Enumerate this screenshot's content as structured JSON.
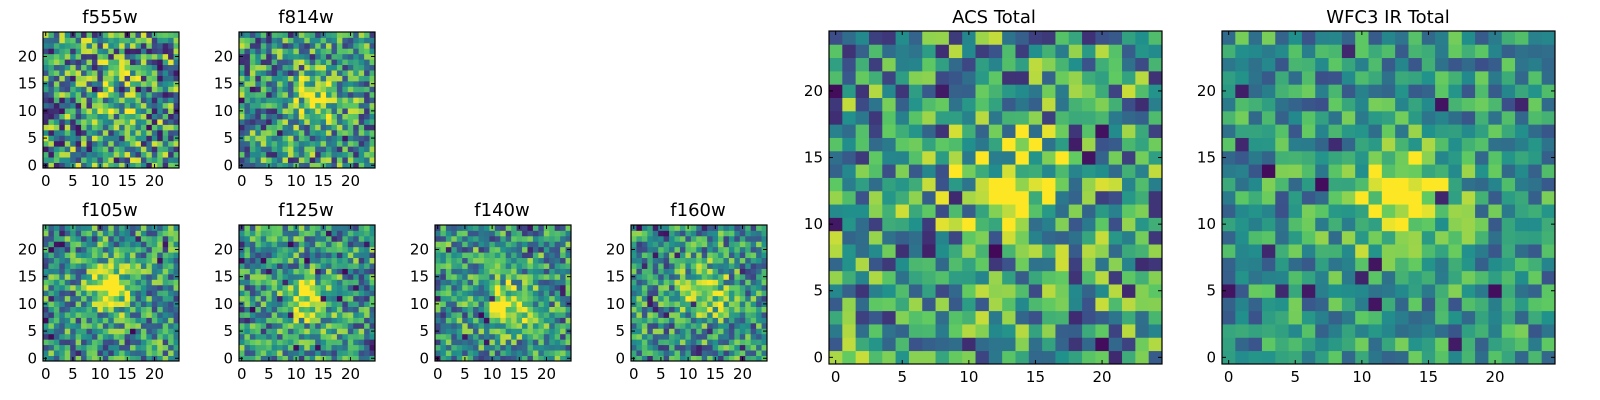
{
  "chart_data": [
    {
      "type": "heatmap",
      "title": "f555w",
      "xlim": [
        -0.5,
        24.5
      ],
      "ylim": [
        -0.5,
        24.5
      ],
      "xticks": [
        0,
        5,
        10,
        15,
        20
      ],
      "yticks": [
        0,
        5,
        10,
        15,
        20
      ],
      "grid_size": 25,
      "colormap": "viridis",
      "source_peak": [
        13,
        13
      ],
      "source_strength": 0.25,
      "noise_amplitude": 0.45
    },
    {
      "type": "heatmap",
      "title": "f814w",
      "xlim": [
        -0.5,
        24.5
      ],
      "ylim": [
        -0.5,
        24.5
      ],
      "xticks": [
        0,
        5,
        10,
        15,
        20
      ],
      "yticks": [
        0,
        5,
        10,
        15,
        20
      ],
      "grid_size": 25,
      "colormap": "viridis",
      "source_peak": [
        14,
        12
      ],
      "source_strength": 0.4,
      "noise_amplitude": 0.4
    },
    {
      "type": "heatmap",
      "title": "f105w",
      "xlim": [
        -0.5,
        24.5
      ],
      "ylim": [
        -0.5,
        24.5
      ],
      "xticks": [
        0,
        5,
        10,
        15,
        20
      ],
      "yticks": [
        0,
        5,
        10,
        15,
        20
      ],
      "grid_size": 25,
      "colormap": "viridis",
      "source_peak": [
        12,
        13
      ],
      "source_strength": 0.45,
      "noise_amplitude": 0.35
    },
    {
      "type": "heatmap",
      "title": "f125w",
      "xlim": [
        -0.5,
        24.5
      ],
      "ylim": [
        -0.5,
        24.5
      ],
      "xticks": [
        0,
        5,
        10,
        15,
        20
      ],
      "yticks": [
        0,
        5,
        10,
        15,
        20
      ],
      "grid_size": 25,
      "colormap": "viridis",
      "source_peak": [
        12,
        11
      ],
      "source_strength": 0.45,
      "noise_amplitude": 0.35
    },
    {
      "type": "heatmap",
      "title": "f140w",
      "xlim": [
        -0.5,
        24.5
      ],
      "ylim": [
        -0.5,
        24.5
      ],
      "xticks": [
        0,
        5,
        10,
        15,
        20
      ],
      "yticks": [
        0,
        5,
        10,
        15,
        20
      ],
      "grid_size": 25,
      "colormap": "viridis",
      "source_peak": [
        13,
        10
      ],
      "source_strength": 0.45,
      "noise_amplitude": 0.35
    },
    {
      "type": "heatmap",
      "title": "f160w",
      "xlim": [
        -0.5,
        24.5
      ],
      "ylim": [
        -0.5,
        24.5
      ],
      "xticks": [
        0,
        5,
        10,
        15,
        20
      ],
      "yticks": [
        0,
        5,
        10,
        15,
        20
      ],
      "grid_size": 25,
      "colormap": "viridis",
      "source_peak": [
        13,
        12
      ],
      "source_strength": 0.45,
      "noise_amplitude": 0.35
    },
    {
      "type": "heatmap",
      "title": "ACS Total",
      "xlim": [
        -0.5,
        24.5
      ],
      "ylim": [
        -0.5,
        24.5
      ],
      "xticks": [
        0,
        5,
        10,
        15,
        20
      ],
      "yticks": [
        0,
        5,
        10,
        15,
        20
      ],
      "grid_size": 25,
      "colormap": "viridis",
      "source_peak": [
        13,
        13
      ],
      "source_strength": 0.35,
      "noise_amplitude": 0.4
    },
    {
      "type": "heatmap",
      "title": "WFC3 IR Total",
      "xlim": [
        -0.5,
        24.5
      ],
      "ylim": [
        -0.5,
        24.5
      ],
      "xticks": [
        0,
        5,
        10,
        15,
        20
      ],
      "yticks": [
        0,
        5,
        10,
        15,
        20
      ],
      "grid_size": 25,
      "colormap": "viridis",
      "source_peak": [
        13,
        12
      ],
      "source_strength": 0.5,
      "noise_amplitude": 0.28
    }
  ],
  "colors": {
    "viridis": [
      "#440154",
      "#3b528b",
      "#21918c",
      "#5ec962",
      "#fde725"
    ],
    "axis": "#000000",
    "background": "#ffffff"
  }
}
